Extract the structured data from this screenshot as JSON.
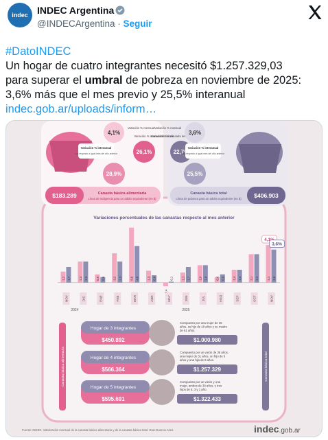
{
  "header": {
    "avatar_text": "indec",
    "name": "INDEC Argentina",
    "handle": "@INDECArgentina",
    "separator": "·",
    "follow": "Seguir"
  },
  "body": {
    "hashtag": "#DatoINDEC",
    "line1": "Un hogar de cuatro integrantes necesitó $1.257.329,03",
    "line2_start": "para superar el",
    "line2_bold": "umbral",
    "line2_end": "de pobreza en noviembre de 2025:",
    "line3": "3,6% más que el mes previo y 25,5% interanual",
    "link": "indec.gob.ar/uploads/inform…"
  },
  "infographic": {
    "cba": {
      "monthly": "4,1%",
      "monthly_label": "Variación % mensual",
      "ytd": "26,1%",
      "ytd_label": "Variación % acumulada del año",
      "yoy": "28,9%",
      "yoy_label": "Variación % interanual",
      "yoy_note": "con respecto a igual mes del año anterior",
      "amount": "$183.289",
      "title": "Canasta básica alimentaria",
      "subtitle": "Línea de indigencia para un adulto equivalente (en $)"
    },
    "cbt": {
      "monthly": "3,6%",
      "monthly_label": "Variación % mensual",
      "ytd": "22,7%",
      "ytd_label": "Variación % acumulada del año",
      "yoy": "25,5%",
      "yoy_label": "Variación % interanual",
      "yoy_note": "con respecto a igual mes del año anterior",
      "amount": "$406.903",
      "title": "Canasta básica total",
      "subtitle": "Línea de pobreza para un adulto equivalente (en $)"
    },
    "households": [
      {
        "title": "Hogar de 3 integrantes",
        "cba": "$450.892",
        "desc": [
          "Compuesto por una mujer de 35",
          "años, su hijo de 18 años y su madre",
          "de 61 años."
        ],
        "cbt": "$1.000.980"
      },
      {
        "title": "Hogar de 4 integrantes",
        "cba": "$566.364",
        "desc": [
          "Compuesto por un varón de 35 años,",
          "una mujer de 31 años, un hijo de 6",
          "años y una hija de 8 años."
        ],
        "cbt": "$1.257.329"
      },
      {
        "title": "Hogar de 5 integrantes",
        "cba": "$595.691",
        "desc": [
          "Compuesto por un varón y una",
          "mujer, ambos de 30 años, y tres",
          "hijos de 5, 3 y 1 año."
        ],
        "cbt": "$1.322.433"
      }
    ],
    "side_left": "Canasta básica alimentaria",
    "side_right": "Canasta básica total",
    "source": "Fuente: INDEC. Valorización mensual de la canasta básica alimentaria y de la canasta básica total. Gran Buenos Aires.",
    "logo": "indec",
    "logo_suffix": ".gob.ar"
  },
  "chart_data": {
    "type": "bar",
    "title": "Variaciones porcentuales de las canastas respecto al mes anterior",
    "categories": [
      "NOV",
      "DIC",
      "ENE",
      "FEB",
      "MAR",
      "ABR",
      "MAY",
      "JUN",
      "JUL",
      "AGO",
      "SEP",
      "OCT",
      "NOV"
    ],
    "years": [
      "2024",
      "2025"
    ],
    "series": [
      {
        "color": "#f2a9c0",
        "values": [
          1.2,
          2.3,
          0.9,
          3.2,
          6.0,
          1.3,
          -0.4,
          1.1,
          1.9,
          0.6,
          1.4,
          3.1,
          4.1
        ],
        "value_labels": [
          "1,2",
          "2,3",
          "0,9",
          "3,2",
          "6,0",
          "1,3",
          "-0,4",
          "1,1",
          "1,9",
          "0,6",
          "1,4",
          "3,1",
          "4,1"
        ]
      },
      {
        "color": "#8d8fb3",
        "values": [
          1.7,
          2.3,
          0.6,
          2.3,
          4.0,
          0.8,
          0.1,
          1.7,
          1.9,
          0.9,
          1.4,
          3.1,
          3.6
        ],
        "value_labels": [
          "1,7",
          "2,3",
          "0,6",
          "2,3",
          "4,0",
          "0,8",
          "0,1",
          "1,7",
          "1,9",
          "0,9",
          "1,4",
          "3,1",
          "3,6"
        ]
      }
    ],
    "highlight_labels": [
      "4,1%",
      "3,6%"
    ],
    "ylim": [
      -1,
      6.5
    ]
  }
}
